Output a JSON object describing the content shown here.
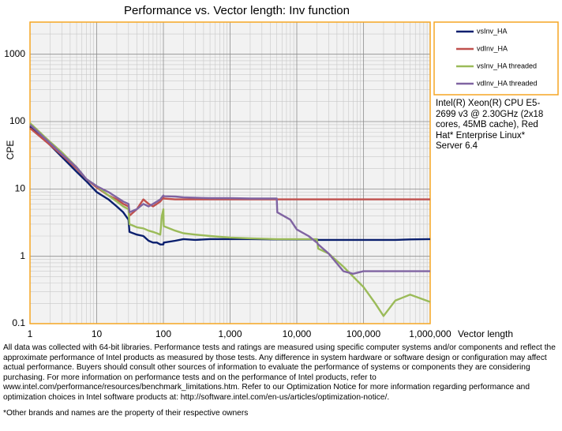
{
  "chart_data": {
    "type": "line",
    "title": "Performance vs. Vector length: Inv function",
    "x_label": "Vector length",
    "y_label": "CPE",
    "log_x": true,
    "log_y": true,
    "grid": true,
    "minor_grid": true,
    "xlim": [
      1,
      1000000
    ],
    "ylim": [
      0.1,
      3000
    ],
    "xticks": [
      1,
      10,
      100,
      {
        "value": 1000,
        "label": "1,000"
      },
      {
        "value": 10000,
        "label": "10,000"
      },
      {
        "value": 100000,
        "label": "100,000"
      },
      {
        "value": 1000000,
        "label": "1,000,000"
      }
    ],
    "yticks": [
      0.1,
      1,
      10,
      100,
      1000
    ],
    "legend": "top-right",
    "x": [
      1,
      2,
      3,
      5,
      7,
      10,
      15,
      20,
      25,
      30,
      31,
      40,
      50,
      60,
      70,
      80,
      90,
      95,
      100,
      101,
      150,
      200,
      300,
      500,
      1000,
      2000,
      5000,
      5100,
      8000,
      10000,
      15000,
      20000,
      21000,
      30000,
      50000,
      70000,
      100000,
      150000,
      200000,
      300000,
      500000,
      1000000
    ],
    "series": [
      {
        "name": "vsInv_HA",
        "color": "#0a1f6e",
        "values": [
          85,
          45,
          30,
          18,
          13,
          9,
          7,
          5.5,
          4.5,
          3.5,
          2.3,
          2.1,
          2.0,
          1.7,
          1.6,
          1.6,
          1.5,
          1.5,
          1.5,
          1.6,
          1.7,
          1.8,
          1.75,
          1.8,
          1.8,
          1.8,
          1.78,
          1.78,
          1.78,
          1.78,
          1.78,
          1.78,
          1.75,
          1.75,
          1.75,
          1.75,
          1.75,
          1.75,
          1.75,
          1.75,
          1.78,
          1.8
        ]
      },
      {
        "name": "vdInv_HA",
        "color": "#c0504d",
        "values": [
          80,
          45,
          32,
          20,
          14,
          10.5,
          8,
          7,
          6,
          5.5,
          4,
          5,
          7,
          6,
          5.5,
          6,
          6.5,
          7,
          7.5,
          7.2,
          7,
          7,
          7,
          7,
          7,
          7,
          7,
          7,
          7,
          7,
          7,
          7,
          7,
          7,
          7,
          7,
          7,
          7,
          7,
          7,
          7,
          7
        ]
      },
      {
        "name": "vsInv_HA threaded",
        "color": "#9bbb59",
        "values": [
          95,
          50,
          35,
          21,
          14,
          11,
          8,
          6.5,
          5.5,
          5,
          3,
          2.7,
          2.6,
          2.4,
          2.3,
          2.2,
          2.1,
          4,
          5,
          2.8,
          2.4,
          2.2,
          2.1,
          2.0,
          1.9,
          1.85,
          1.8,
          1.8,
          1.8,
          1.8,
          1.8,
          1.8,
          1.3,
          1.1,
          0.7,
          0.5,
          0.35,
          0.2,
          0.13,
          0.22,
          0.27,
          0.21
        ]
      },
      {
        "name": "vdInv_HA threaded",
        "color": "#8064a2",
        "values": [
          90,
          48,
          33,
          21,
          14,
          11,
          9,
          7.5,
          6.5,
          6,
          4.5,
          5,
          6,
          5.5,
          6,
          6.5,
          7,
          7.5,
          8,
          7.8,
          7.7,
          7.5,
          7.4,
          7.3,
          7.3,
          7.2,
          7.2,
          4.5,
          3.5,
          2.5,
          2.0,
          1.6,
          1.5,
          1.1,
          0.6,
          0.55,
          0.6,
          0.6,
          0.6,
          0.6,
          0.6,
          0.6
        ]
      }
    ],
    "annotation": "Intel(R) Xeon(R) CPU E5-2699 v3 @ 2.30GHz (2x18 cores, 45MB cache), Red Hat* Enterprise Linux* Server 6.4",
    "footnote": "All data was collected with 64-bit libraries. Performance tests and ratings are measured using specific computer systems and/or components and reflect the approximate performance of Intel products as measured by those tests. Any difference in system hardware or software design or configuration may affect actual performance. Buyers should consult other sources of information to evaluate the performance of systems or components they are considering purchasing. For more information on performance tests and on the performance of Intel products, refer to www.intel.com/performance/resources/benchmark_limitations.htm. Refer to our Optimization Notice for more information regarding performance and optimization choices in Intel software products at: http://software.intel.com/en-us/articles/optimization-notice/.",
    "footnote2": "*Other brands and names are the property of their respective owners"
  }
}
